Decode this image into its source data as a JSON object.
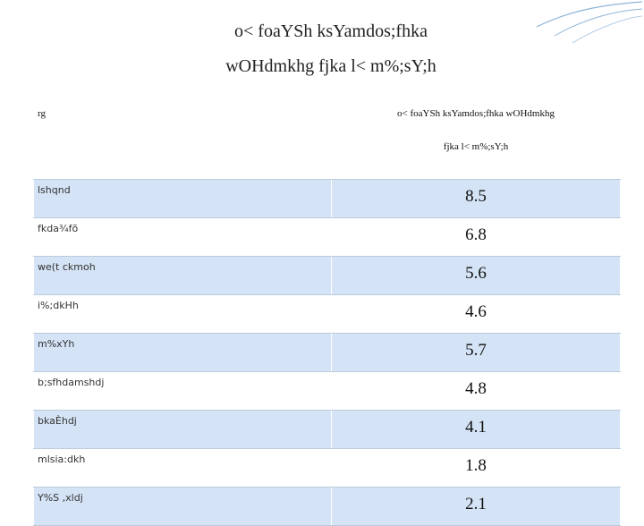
{
  "title": [
    "o< foaYSh ksYamdos;fhka",
    "wOHdmkhg fjka l< m%;sY;h"
  ],
  "table": {
    "header": [
      "rg",
      [
        "o< foaYSh ksYamdos;fhka wOHdmkhg",
        "fjka l< m%;sY;h"
      ]
    ],
    "rows": [
      [
        "lshqnd",
        8.5
      ],
      [
        "fkda¾fõ",
        6.8
      ],
      [
        "we(t ckmoh",
        5.6
      ],
      [
        "i%;dkHh",
        4.6
      ],
      [
        "m%xYh",
        5.7
      ],
      [
        "b;sfhdamshdj",
        4.8
      ],
      [
        "bkaÈhdj",
        4.1
      ],
      [
        "mlsia:dkh",
        1.8
      ],
      [
        "Y%S ,xldj",
        2.1
      ]
    ]
  }
}
